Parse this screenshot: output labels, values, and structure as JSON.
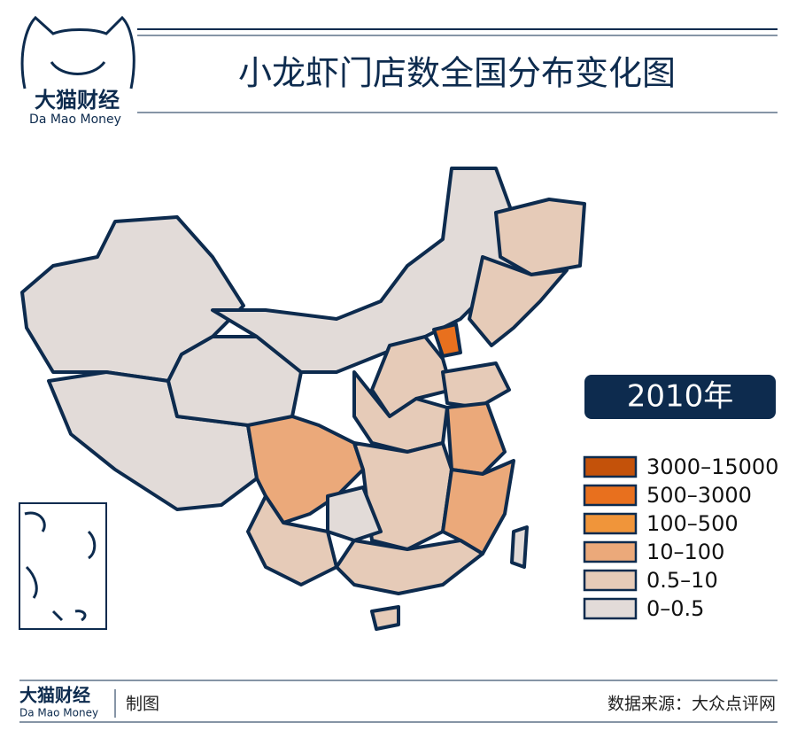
{
  "header": {
    "logo_cn": "大猫财经",
    "logo_en": "Da Mao Money",
    "title": "小龙虾门店数全国分布变化图"
  },
  "map": {
    "year": "2010年",
    "legend": [
      {
        "label": "3000–15000",
        "color": "#c4520a"
      },
      {
        "label": "500–3000",
        "color": "#e8701e"
      },
      {
        "label": "100–500",
        "color": "#f0953a"
      },
      {
        "label": "10–100",
        "color": "#eba97a"
      },
      {
        "label": "0.5–10",
        "color": "#e6cbb8"
      },
      {
        "label": "0–0.5",
        "color": "#e2dbd8"
      }
    ]
  },
  "footer": {
    "logo_cn": "大猫财经",
    "logo_en": "Da Mao Money",
    "credit": "制图",
    "source": "数据来源：大众点评网"
  }
}
